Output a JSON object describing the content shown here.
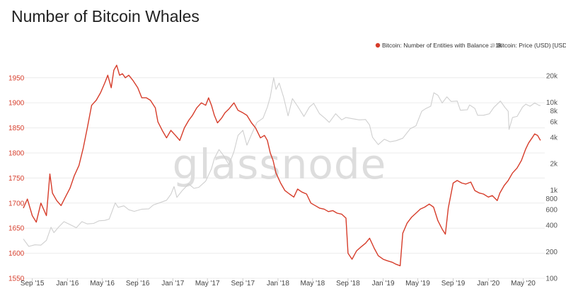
{
  "chart_data": {
    "type": "line",
    "title": "Number of Bitcoin Whales",
    "watermark": "glassnode",
    "legend_position": "top-right",
    "y_left": {
      "scale": "linear",
      "range": [
        1550,
        1985
      ],
      "ticks": [
        1550,
        1600,
        1650,
        1700,
        1750,
        1800,
        1850,
        1900,
        1950
      ],
      "color": "#d63c2a"
    },
    "y_right": {
      "scale": "log",
      "range": [
        100,
        30000
      ],
      "ticks": [
        {
          "value": 100,
          "label": "100"
        },
        {
          "value": 200,
          "label": "200"
        },
        {
          "value": 400,
          "label": "400"
        },
        {
          "value": 600,
          "label": "600"
        },
        {
          "value": 800,
          "label": "800"
        },
        {
          "value": 1000,
          "label": "1k"
        },
        {
          "value": 2000,
          "label": "2k"
        },
        {
          "value": 4000,
          "label": "4k"
        },
        {
          "value": 6000,
          "label": "6k"
        },
        {
          "value": 8000,
          "label": "8k"
        },
        {
          "value": 10000,
          "label": "10k"
        },
        {
          "value": 20000,
          "label": "20k"
        }
      ]
    },
    "x_range": [
      "2015-08-01",
      "2020-07-15"
    ],
    "x_ticks": [
      {
        "date": "2015-09-01",
        "label": "Sep '15"
      },
      {
        "date": "2016-01-01",
        "label": "Jan '16"
      },
      {
        "date": "2016-05-01",
        "label": "May '16"
      },
      {
        "date": "2016-09-01",
        "label": "Sep '16"
      },
      {
        "date": "2017-01-01",
        "label": "Jan '17"
      },
      {
        "date": "2017-05-01",
        "label": "May '17"
      },
      {
        "date": "2017-09-01",
        "label": "Sep '17"
      },
      {
        "date": "2018-01-01",
        "label": "Jan '18"
      },
      {
        "date": "2018-05-01",
        "label": "May '18"
      },
      {
        "date": "2018-09-01",
        "label": "Sep '18"
      },
      {
        "date": "2019-01-01",
        "label": "Jan '19"
      },
      {
        "date": "2019-05-01",
        "label": "May '19"
      },
      {
        "date": "2019-09-01",
        "label": "Sep '19"
      },
      {
        "date": "2020-01-01",
        "label": "Jan '20"
      },
      {
        "date": "2020-05-01",
        "label": "May '20"
      }
    ],
    "series": [
      {
        "name": "Bitcoin: Number of Entities with Balance ≥ 1k",
        "axis": "left",
        "color": "#d63c2a",
        "points": [
          [
            "2015-08-01",
            1690
          ],
          [
            "2015-08-15",
            1708
          ],
          [
            "2015-09-01",
            1675
          ],
          [
            "2015-09-15",
            1662
          ],
          [
            "2015-10-01",
            1700
          ],
          [
            "2015-10-20",
            1675
          ],
          [
            "2015-11-01",
            1758
          ],
          [
            "2015-11-10",
            1720
          ],
          [
            "2015-11-25",
            1705
          ],
          [
            "2015-12-10",
            1695
          ],
          [
            "2015-12-25",
            1712
          ],
          [
            "2016-01-10",
            1730
          ],
          [
            "2016-01-25",
            1755
          ],
          [
            "2016-02-10",
            1775
          ],
          [
            "2016-02-25",
            1810
          ],
          [
            "2016-03-10",
            1850
          ],
          [
            "2016-03-25",
            1895
          ],
          [
            "2016-04-10",
            1905
          ],
          [
            "2016-04-25",
            1920
          ],
          [
            "2016-05-10",
            1940
          ],
          [
            "2016-05-20",
            1955
          ],
          [
            "2016-06-01",
            1930
          ],
          [
            "2016-06-10",
            1965
          ],
          [
            "2016-06-20",
            1975
          ],
          [
            "2016-06-30",
            1955
          ],
          [
            "2016-07-10",
            1958
          ],
          [
            "2016-07-20",
            1950
          ],
          [
            "2016-08-01",
            1955
          ],
          [
            "2016-08-15",
            1945
          ],
          [
            "2016-09-01",
            1930
          ],
          [
            "2016-09-15",
            1910
          ],
          [
            "2016-10-01",
            1910
          ],
          [
            "2016-10-15",
            1905
          ],
          [
            "2016-11-01",
            1890
          ],
          [
            "2016-11-10",
            1862
          ],
          [
            "2016-11-25",
            1845
          ],
          [
            "2016-12-10",
            1830
          ],
          [
            "2016-12-25",
            1845
          ],
          [
            "2017-01-10",
            1835
          ],
          [
            "2017-01-25",
            1825
          ],
          [
            "2017-02-10",
            1850
          ],
          [
            "2017-02-25",
            1865
          ],
          [
            "2017-03-10",
            1875
          ],
          [
            "2017-03-25",
            1890
          ],
          [
            "2017-04-10",
            1900
          ],
          [
            "2017-04-25",
            1895
          ],
          [
            "2017-05-05",
            1910
          ],
          [
            "2017-05-15",
            1895
          ],
          [
            "2017-05-25",
            1875
          ],
          [
            "2017-06-05",
            1860
          ],
          [
            "2017-06-20",
            1870
          ],
          [
            "2017-07-01",
            1880
          ],
          [
            "2017-07-15",
            1888
          ],
          [
            "2017-08-01",
            1900
          ],
          [
            "2017-08-15",
            1885
          ],
          [
            "2017-09-01",
            1880
          ],
          [
            "2017-09-15",
            1875
          ],
          [
            "2017-10-01",
            1860
          ],
          [
            "2017-10-15",
            1850
          ],
          [
            "2017-11-01",
            1830
          ],
          [
            "2017-11-15",
            1835
          ],
          [
            "2017-11-25",
            1825
          ],
          [
            "2017-12-05",
            1800
          ],
          [
            "2017-12-15",
            1785
          ],
          [
            "2017-12-25",
            1760
          ],
          [
            "2018-01-10",
            1740
          ],
          [
            "2018-01-25",
            1725
          ],
          [
            "2018-02-10",
            1718
          ],
          [
            "2018-02-25",
            1712
          ],
          [
            "2018-03-10",
            1728
          ],
          [
            "2018-03-25",
            1722
          ],
          [
            "2018-04-10",
            1718
          ],
          [
            "2018-04-25",
            1700
          ],
          [
            "2018-05-10",
            1695
          ],
          [
            "2018-05-25",
            1690
          ],
          [
            "2018-06-10",
            1688
          ],
          [
            "2018-06-25",
            1683
          ],
          [
            "2018-07-10",
            1685
          ],
          [
            "2018-07-25",
            1680
          ],
          [
            "2018-08-10",
            1678
          ],
          [
            "2018-08-25",
            1670
          ],
          [
            "2018-09-01",
            1600
          ],
          [
            "2018-09-15",
            1588
          ],
          [
            "2018-10-01",
            1605
          ],
          [
            "2018-10-15",
            1612
          ],
          [
            "2018-11-01",
            1620
          ],
          [
            "2018-11-15",
            1630
          ],
          [
            "2018-12-01",
            1610
          ],
          [
            "2018-12-15",
            1595
          ],
          [
            "2019-01-01",
            1588
          ],
          [
            "2019-01-15",
            1585
          ],
          [
            "2019-02-01",
            1582
          ],
          [
            "2019-02-15",
            1578
          ],
          [
            "2019-03-01",
            1575
          ],
          [
            "2019-03-10",
            1640
          ],
          [
            "2019-03-25",
            1660
          ],
          [
            "2019-04-10",
            1672
          ],
          [
            "2019-04-25",
            1680
          ],
          [
            "2019-05-10",
            1688
          ],
          [
            "2019-05-25",
            1692
          ],
          [
            "2019-06-10",
            1698
          ],
          [
            "2019-06-25",
            1692
          ],
          [
            "2019-07-10",
            1665
          ],
          [
            "2019-07-25",
            1648
          ],
          [
            "2019-08-05",
            1638
          ],
          [
            "2019-08-15",
            1690
          ],
          [
            "2019-09-01",
            1740
          ],
          [
            "2019-09-15",
            1745
          ],
          [
            "2019-10-01",
            1740
          ],
          [
            "2019-10-15",
            1738
          ],
          [
            "2019-11-01",
            1742
          ],
          [
            "2019-11-15",
            1725
          ],
          [
            "2019-12-01",
            1720
          ],
          [
            "2019-12-15",
            1718
          ],
          [
            "2020-01-01",
            1712
          ],
          [
            "2020-01-15",
            1715
          ],
          [
            "2020-02-01",
            1705
          ],
          [
            "2020-02-10",
            1720
          ],
          [
            "2020-02-25",
            1735
          ],
          [
            "2020-03-10",
            1745
          ],
          [
            "2020-03-25",
            1760
          ],
          [
            "2020-04-10",
            1770
          ],
          [
            "2020-04-25",
            1785
          ],
          [
            "2020-05-10",
            1808
          ],
          [
            "2020-05-20",
            1820
          ],
          [
            "2020-06-01",
            1830
          ],
          [
            "2020-06-10",
            1838
          ],
          [
            "2020-06-20",
            1835
          ],
          [
            "2020-06-30",
            1825
          ]
        ]
      },
      {
        "name": "Bitcoin: Price (USD) [USD]",
        "axis": "right",
        "color": "#cfcfcf",
        "points": [
          [
            "2015-08-01",
            280
          ],
          [
            "2015-08-20",
            230
          ],
          [
            "2015-09-10",
            240
          ],
          [
            "2015-10-01",
            238
          ],
          [
            "2015-10-20",
            270
          ],
          [
            "2015-11-05",
            380
          ],
          [
            "2015-11-15",
            330
          ],
          [
            "2015-12-01",
            380
          ],
          [
            "2015-12-20",
            440
          ],
          [
            "2016-01-15",
            400
          ],
          [
            "2016-02-01",
            375
          ],
          [
            "2016-02-20",
            440
          ],
          [
            "2016-03-10",
            415
          ],
          [
            "2016-04-01",
            420
          ],
          [
            "2016-04-20",
            450
          ],
          [
            "2016-05-10",
            455
          ],
          [
            "2016-05-25",
            470
          ],
          [
            "2016-06-15",
            720
          ],
          [
            "2016-06-25",
            640
          ],
          [
            "2016-07-15",
            665
          ],
          [
            "2016-08-01",
            600
          ],
          [
            "2016-08-20",
            575
          ],
          [
            "2016-09-15",
            610
          ],
          [
            "2016-10-10",
            615
          ],
          [
            "2016-10-25",
            680
          ],
          [
            "2016-11-10",
            710
          ],
          [
            "2016-12-10",
            770
          ],
          [
            "2016-12-25",
            900
          ],
          [
            "2017-01-05",
            1100
          ],
          [
            "2017-01-15",
            830
          ],
          [
            "2017-02-01",
            980
          ],
          [
            "2017-02-25",
            1180
          ],
          [
            "2017-03-15",
            1050
          ],
          [
            "2017-04-01",
            1080
          ],
          [
            "2017-04-25",
            1270
          ],
          [
            "2017-05-15",
            1750
          ],
          [
            "2017-05-25",
            2300
          ],
          [
            "2017-06-10",
            2900
          ],
          [
            "2017-06-25",
            2500
          ],
          [
            "2017-07-15",
            1950
          ],
          [
            "2017-08-01",
            2750
          ],
          [
            "2017-08-15",
            4200
          ],
          [
            "2017-09-01",
            4800
          ],
          [
            "2017-09-15",
            3250
          ],
          [
            "2017-10-01",
            4300
          ],
          [
            "2017-10-20",
            5900
          ],
          [
            "2017-11-10",
            6600
          ],
          [
            "2017-11-25",
            8800
          ],
          [
            "2017-12-05",
            11500
          ],
          [
            "2017-12-17",
            19000
          ],
          [
            "2017-12-25",
            14000
          ],
          [
            "2018-01-05",
            16500
          ],
          [
            "2018-01-20",
            11500
          ],
          [
            "2018-02-05",
            7000
          ],
          [
            "2018-02-20",
            11000
          ],
          [
            "2018-03-10",
            9000
          ],
          [
            "2018-04-01",
            6900
          ],
          [
            "2018-04-20",
            8800
          ],
          [
            "2018-05-05",
            9700
          ],
          [
            "2018-05-25",
            7400
          ],
          [
            "2018-06-10",
            6700
          ],
          [
            "2018-06-28",
            5900
          ],
          [
            "2018-07-20",
            7400
          ],
          [
            "2018-08-10",
            6300
          ],
          [
            "2018-08-25",
            6700
          ],
          [
            "2018-09-15",
            6500
          ],
          [
            "2018-10-10",
            6300
          ],
          [
            "2018-11-01",
            6350
          ],
          [
            "2018-11-15",
            5500
          ],
          [
            "2018-11-25",
            4000
          ],
          [
            "2018-12-15",
            3300
          ],
          [
            "2019-01-05",
            3800
          ],
          [
            "2019-01-25",
            3550
          ],
          [
            "2019-02-15",
            3650
          ],
          [
            "2019-03-10",
            3900
          ],
          [
            "2019-04-05",
            5000
          ],
          [
            "2019-04-25",
            5400
          ],
          [
            "2019-05-15",
            7900
          ],
          [
            "2019-05-30",
            8500
          ],
          [
            "2019-06-15",
            9000
          ],
          [
            "2019-06-26",
            12800
          ],
          [
            "2019-07-10",
            12000
          ],
          [
            "2019-07-25",
            9800
          ],
          [
            "2019-08-10",
            11500
          ],
          [
            "2019-08-25",
            10200
          ],
          [
            "2019-09-15",
            10300
          ],
          [
            "2019-09-26",
            8100
          ],
          [
            "2019-10-20",
            8200
          ],
          [
            "2019-10-28",
            9300
          ],
          [
            "2019-11-15",
            8500
          ],
          [
            "2019-11-25",
            7100
          ],
          [
            "2019-12-15",
            7100
          ],
          [
            "2020-01-05",
            7400
          ],
          [
            "2020-01-20",
            8700
          ],
          [
            "2020-02-12",
            10300
          ],
          [
            "2020-02-28",
            8700
          ],
          [
            "2020-03-10",
            7900
          ],
          [
            "2020-03-13",
            4900
          ],
          [
            "2020-03-25",
            6700
          ],
          [
            "2020-04-10",
            6900
          ],
          [
            "2020-04-29",
            8800
          ],
          [
            "2020-05-10",
            9500
          ],
          [
            "2020-05-25",
            9000
          ],
          [
            "2020-06-10",
            9800
          ],
          [
            "2020-06-25",
            9200
          ],
          [
            "2020-06-30",
            9150
          ]
        ]
      }
    ]
  }
}
